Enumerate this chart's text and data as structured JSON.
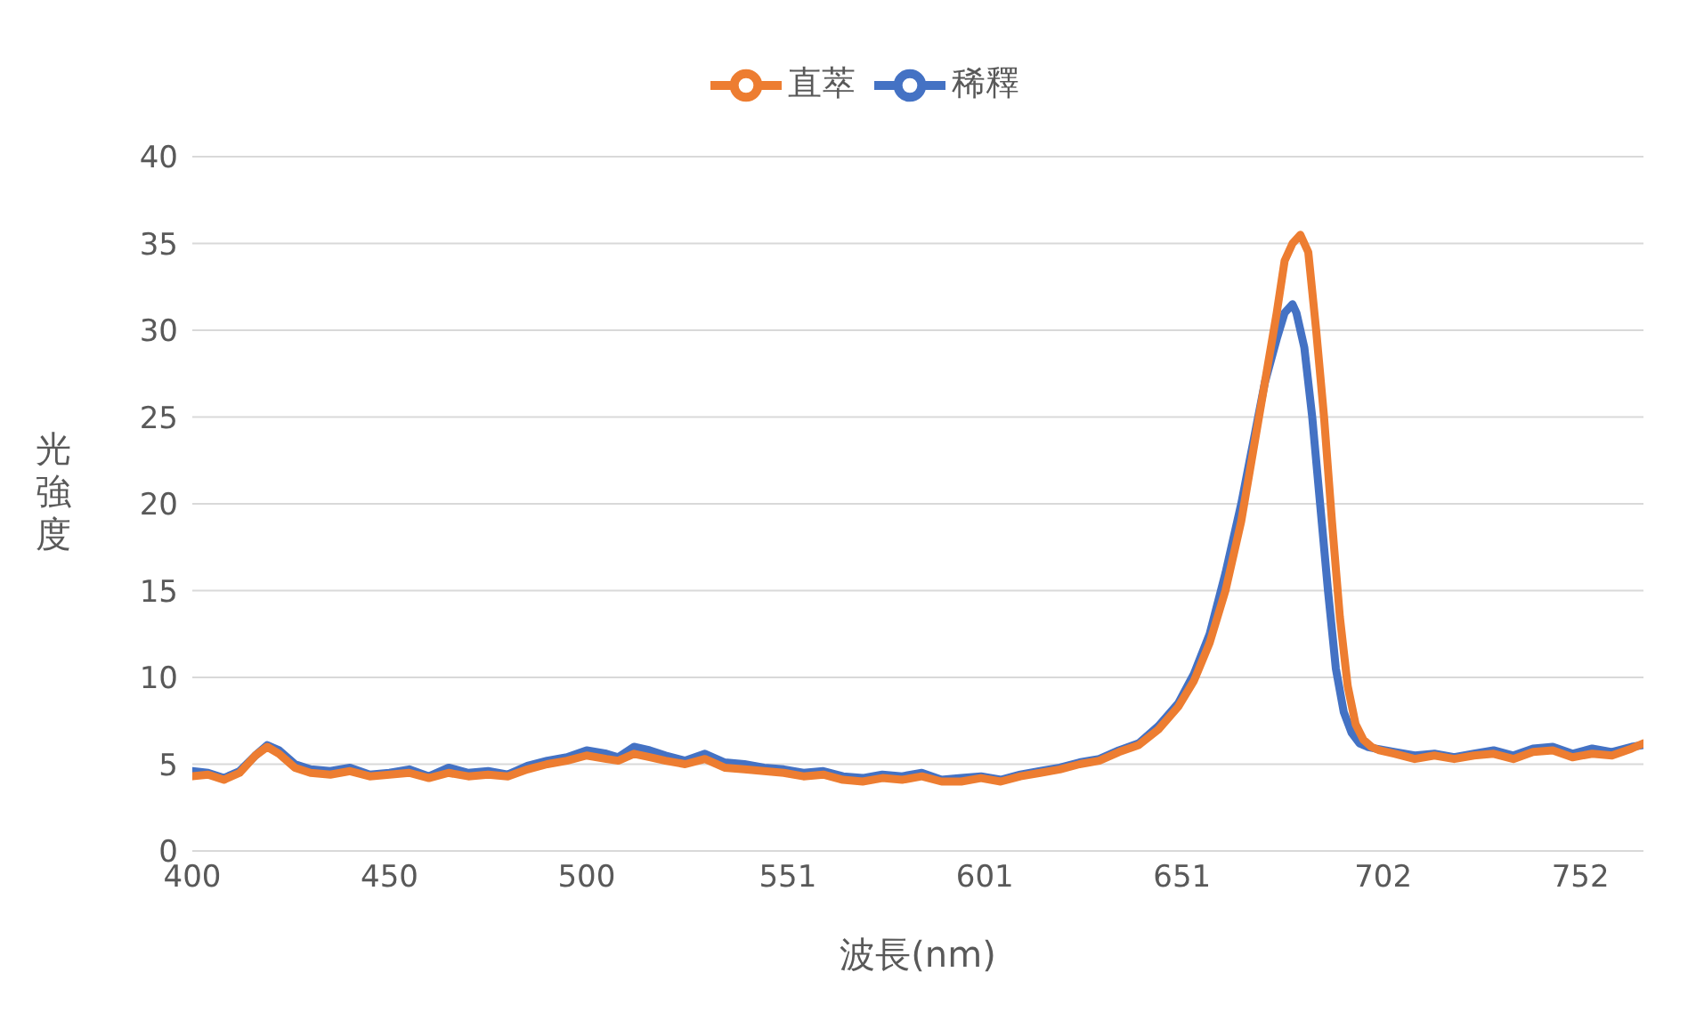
{
  "chart_data": {
    "type": "line",
    "xlabel": "波長(nm)",
    "ylabel": "光強度",
    "xlim": [
      400,
      768
    ],
    "xticks": [
      400,
      450,
      500,
      551,
      601,
      651,
      702,
      752
    ],
    "ylim": [
      0,
      40
    ],
    "yticks": [
      0,
      5,
      10,
      15,
      20,
      25,
      30,
      35,
      40
    ],
    "grid": "y",
    "legend": "top",
    "marker": "none",
    "line_style": "solid",
    "series": [
      {
        "name": "稀釋",
        "color": "#4472c4",
        "x": [
          400,
          404,
          408,
          412,
          416,
          419,
          422,
          426,
          430,
          435,
          440,
          445,
          450,
          455,
          460,
          465,
          470,
          475,
          480,
          485,
          490,
          495,
          500,
          505,
          508,
          512,
          516,
          520,
          525,
          530,
          535,
          540,
          545,
          550,
          555,
          560,
          565,
          570,
          575,
          580,
          585,
          590,
          595,
          600,
          605,
          610,
          615,
          620,
          625,
          630,
          635,
          640,
          645,
          650,
          654,
          658,
          662,
          666,
          669,
          672,
          675,
          677,
          679,
          680,
          682,
          684,
          686,
          688,
          690,
          692,
          694,
          696,
          698,
          700,
          705,
          710,
          715,
          720,
          725,
          730,
          735,
          740,
          745,
          750,
          755,
          760,
          765,
          768
        ],
        "values": [
          4.6,
          4.5,
          4.2,
          4.6,
          5.5,
          6.1,
          5.8,
          5,
          4.7,
          4.6,
          4.8,
          4.4,
          4.5,
          4.7,
          4.3,
          4.8,
          4.5,
          4.6,
          4.4,
          4.9,
          5.2,
          5.4,
          5.8,
          5.6,
          5.4,
          6,
          5.8,
          5.5,
          5.2,
          5.6,
          5.1,
          5,
          4.8,
          4.7,
          4.5,
          4.6,
          4.3,
          4.2,
          4.4,
          4.3,
          4.5,
          4.1,
          4.2,
          4.3,
          4.1,
          4.4,
          4.6,
          4.8,
          5.1,
          5.3,
          5.8,
          6.2,
          7.2,
          8.5,
          10.2,
          12.5,
          16,
          20,
          23.5,
          27,
          29.5,
          31,
          31.5,
          31,
          29,
          25,
          20,
          15,
          10.5,
          8,
          6.8,
          6.2,
          6,
          5.9,
          5.7,
          5.5,
          5.6,
          5.4,
          5.6,
          5.8,
          5.5,
          5.9,
          6,
          5.6,
          5.9,
          5.7,
          6,
          6.1
        ]
      },
      {
        "name": "直萃",
        "color": "#ed7d31",
        "x": [
          400,
          404,
          408,
          412,
          416,
          419,
          422,
          426,
          430,
          435,
          440,
          445,
          450,
          455,
          460,
          465,
          470,
          475,
          480,
          485,
          490,
          495,
          500,
          505,
          508,
          512,
          516,
          520,
          525,
          530,
          535,
          540,
          545,
          550,
          555,
          560,
          565,
          570,
          575,
          580,
          585,
          590,
          595,
          600,
          605,
          610,
          615,
          620,
          625,
          630,
          635,
          640,
          645,
          650,
          654,
          658,
          662,
          666,
          669,
          672,
          675,
          677,
          679,
          681,
          683,
          685,
          687,
          689,
          691,
          693,
          695,
          697,
          699,
          701,
          705,
          710,
          715,
          720,
          725,
          730,
          735,
          740,
          745,
          750,
          755,
          760,
          765,
          768
        ],
        "values": [
          4.3,
          4.4,
          4.1,
          4.5,
          5.5,
          6,
          5.6,
          4.8,
          4.5,
          4.4,
          4.6,
          4.3,
          4.4,
          4.5,
          4.2,
          4.5,
          4.3,
          4.4,
          4.3,
          4.7,
          5,
          5.2,
          5.5,
          5.3,
          5.2,
          5.6,
          5.4,
          5.2,
          5,
          5.3,
          4.8,
          4.7,
          4.6,
          4.5,
          4.3,
          4.4,
          4.1,
          4,
          4.2,
          4.1,
          4.3,
          4,
          4,
          4.2,
          4,
          4.3,
          4.5,
          4.7,
          5,
          5.2,
          5.7,
          6.1,
          7,
          8.3,
          9.8,
          12,
          15,
          19,
          23,
          27,
          31,
          34,
          35,
          35.5,
          34.5,
          30,
          25,
          19,
          13.5,
          9.5,
          7.3,
          6.4,
          6,
          5.8,
          5.6,
          5.3,
          5.5,
          5.3,
          5.5,
          5.6,
          5.3,
          5.7,
          5.8,
          5.4,
          5.6,
          5.5,
          5.9,
          6.2
        ]
      }
    ]
  }
}
